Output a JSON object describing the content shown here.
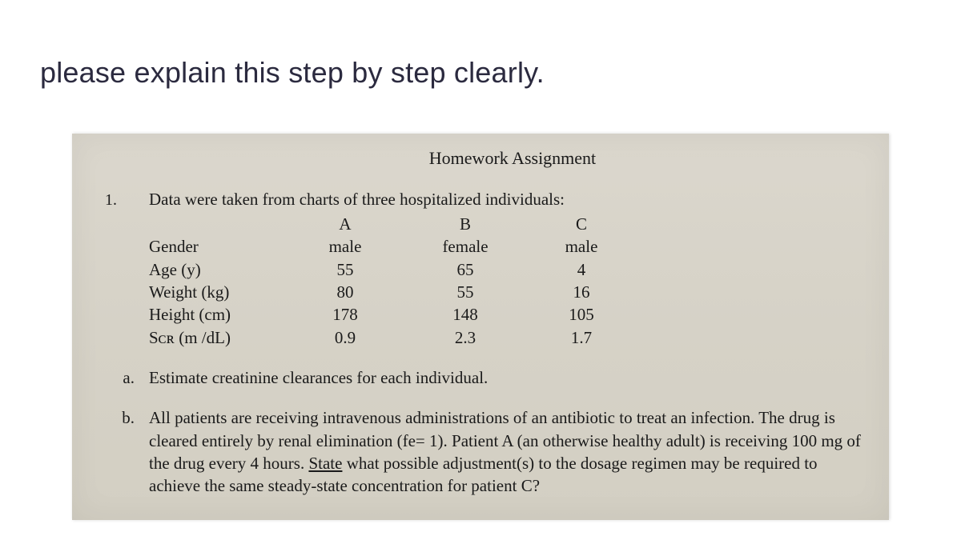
{
  "prompt": "please explain this step by step clearly.",
  "paper": {
    "background_color": "#d9d5cb",
    "text_color": "#1a1a1a",
    "font_family": "Times New Roman",
    "title": "Homework Assignment",
    "question_number": "1.",
    "lead": "Data were taken from charts of three hospitalized individuals:",
    "table": {
      "columns": [
        "A",
        "B",
        "C"
      ],
      "rows": [
        {
          "label": "Gender",
          "values": [
            "male",
            "female",
            "male"
          ]
        },
        {
          "label": "Age (y)",
          "values": [
            "55",
            "65",
            "4"
          ]
        },
        {
          "label": "Weight (kg)",
          "values": [
            "80",
            "55",
            "16"
          ]
        },
        {
          "label": "Height (cm)",
          "values": [
            "178",
            "148",
            "105"
          ]
        },
        {
          "label": "Sᴄʀ (m /dL)",
          "values": [
            "0.9",
            "2.3",
            "1.7"
          ]
        }
      ]
    },
    "subquestions": [
      {
        "letter": "a.",
        "text": "Estimate creatinine clearances for each individual."
      },
      {
        "letter": "b.",
        "text": "All patients are receiving intravenous administrations of an antibiotic to treat an infection. The drug is cleared entirely by renal elimination (fe= 1). Patient A (an otherwise healthy adult) is receiving 100 mg of the drug every 4 hours. State what possible adjustment(s) to the dosage regimen may be required to achieve the same steady-state concentration for patient C?",
        "underline_word": "State"
      }
    ]
  }
}
